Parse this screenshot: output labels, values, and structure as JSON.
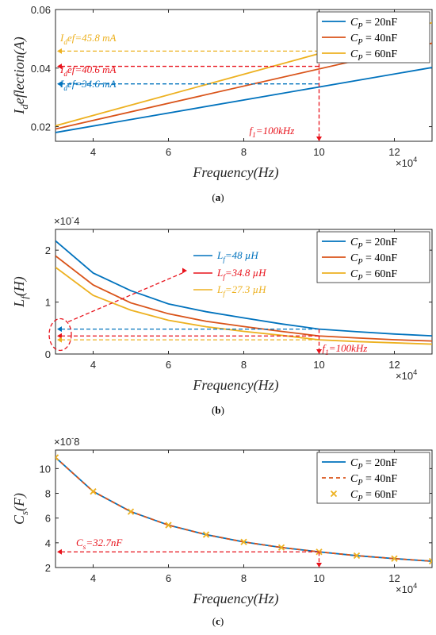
{
  "colors": {
    "blue": "#0072BD",
    "orange": "#D95319",
    "yellow": "#EDB120",
    "red": "#E8131C",
    "axis": "#262626"
  },
  "chart_data": [
    {
      "id": "a",
      "type": "line",
      "subcaption": "(a)",
      "xlabel": "Frequency(Hz)",
      "ylabel": "I_deflection(A)",
      "xlim": [
        30000,
        130000
      ],
      "ylim": [
        0.015,
        0.06
      ],
      "x_ticks": [
        "4",
        "6",
        "8",
        "10",
        "12"
      ],
      "y_ticks": [
        "0.02",
        "0.04",
        "0.06"
      ],
      "x_exponent": "×10^4",
      "legend": [
        "C_P = 20nF",
        "C_P = 40nF",
        "C_P = 60nF"
      ],
      "series": [
        {
          "name": "C_P = 20nF",
          "x": [
            30000,
            130000
          ],
          "y": [
            0.018,
            0.0402
          ]
        },
        {
          "name": "C_P = 40nF",
          "x": [
            30000,
            130000
          ],
          "y": [
            0.0192,
            0.0485
          ]
        },
        {
          "name": "C_P = 60nF",
          "x": [
            30000,
            130000
          ],
          "y": [
            0.0203,
            0.0555
          ]
        }
      ],
      "annotations": [
        {
          "label": "I_def=45.8 mA",
          "y": 0.0458,
          "color": "yellow"
        },
        {
          "label": "I_def=40.6 mA",
          "y": 0.0406,
          "color": "red"
        },
        {
          "label": "I_def=34.6 mA",
          "y": 0.0346,
          "color": "blue"
        },
        {
          "label": "f_1=100kHz",
          "x": 100000,
          "color": "red"
        }
      ]
    },
    {
      "id": "b",
      "type": "line",
      "subcaption": "(b)",
      "xlabel": "Frequency(Hz)",
      "ylabel": "L_f(H)",
      "xlim": [
        30000,
        130000
      ],
      "ylim": [
        0,
        0.00024
      ],
      "x_ticks": [
        "4",
        "6",
        "8",
        "10",
        "12"
      ],
      "y_ticks": [
        "0",
        "1",
        "2"
      ],
      "y_exponent": "×10^-4",
      "x_exponent": "×10^4",
      "legend": [
        "C_P = 20nF",
        "C_P = 40nF",
        "C_P = 60nF"
      ],
      "series": [
        {
          "name": "C_P = 20nF",
          "x": [
            30000,
            40000,
            50000,
            60000,
            70000,
            80000,
            90000,
            100000,
            110000,
            120000,
            130000
          ],
          "y": [
            0.000218,
            0.000156,
            0.000122,
            9.65e-05,
            8.15e-05,
            6.95e-05,
            5.8e-05,
            4.8e-05,
            4.3e-05,
            3.85e-05,
            3.5e-05
          ]
        },
        {
          "name": "C_P = 40nF",
          "x": [
            30000,
            40000,
            50000,
            60000,
            70000,
            80000,
            90000,
            100000,
            110000,
            120000,
            130000
          ],
          "y": [
            0.000189,
            0.000133,
            9.85e-05,
            7.75e-05,
            6.3e-05,
            5.3e-05,
            4.35e-05,
            3.48e-05,
            3.1e-05,
            2.75e-05,
            2.5e-05
          ]
        },
        {
          "name": "C_P = 60nF",
          "x": [
            30000,
            40000,
            50000,
            60000,
            70000,
            80000,
            90000,
            100000,
            110000,
            120000,
            130000
          ],
          "y": [
            0.000167,
            0.000113,
            8.45e-05,
            6.5e-05,
            5.25e-05,
            4.35e-05,
            3.6e-05,
            2.73e-05,
            2.4e-05,
            2.15e-05,
            1.9e-05
          ]
        }
      ],
      "annotations": [
        {
          "label": "L_f=48 µH",
          "y": 4.8e-05,
          "color": "blue"
        },
        {
          "label": "L_f=34.8 µH",
          "y": 3.48e-05,
          "color": "red"
        },
        {
          "label": "L_f=27.3 µH",
          "y": 2.73e-05,
          "color": "yellow"
        },
        {
          "label": "f_1=100kHz",
          "x": 100000,
          "color": "red"
        }
      ]
    },
    {
      "id": "c",
      "type": "line",
      "subcaption": "(c)",
      "xlabel": "Frequency(Hz)",
      "ylabel": "C_s(F)",
      "xlim": [
        30000,
        130000
      ],
      "ylim": [
        2e-08,
        1.15e-07
      ],
      "x_ticks": [
        "4",
        "6",
        "8",
        "10",
        "12"
      ],
      "y_ticks": [
        "2",
        "4",
        "6",
        "8",
        "10"
      ],
      "y_exponent": "×10^-8",
      "x_exponent": "×10^4",
      "legend": [
        "C_P = 20nF",
        "C_P = 40nF",
        "C_P = 60nF"
      ],
      "series": [
        {
          "name": "C_P = 20nF",
          "style": "solid",
          "x": [
            30000,
            40000,
            50000,
            60000,
            70000,
            80000,
            90000,
            100000,
            110000,
            120000,
            130000
          ],
          "y": [
            1.09e-07,
            8.15e-08,
            6.52e-08,
            5.43e-08,
            4.66e-08,
            4.07e-08,
            3.62e-08,
            3.27e-08,
            2.96e-08,
            2.72e-08,
            2.51e-08
          ]
        },
        {
          "name": "C_P = 40nF",
          "style": "dashed",
          "x": [
            30000,
            40000,
            50000,
            60000,
            70000,
            80000,
            90000,
            100000,
            110000,
            120000,
            130000
          ],
          "y": [
            1.09e-07,
            8.15e-08,
            6.52e-08,
            5.43e-08,
            4.66e-08,
            4.07e-08,
            3.62e-08,
            3.27e-08,
            2.96e-08,
            2.72e-08,
            2.51e-08
          ]
        },
        {
          "name": "C_P = 60nF",
          "style": "markers",
          "x": [
            30000,
            40000,
            50000,
            60000,
            70000,
            80000,
            90000,
            100000,
            110000,
            120000,
            130000
          ],
          "y": [
            1.09e-07,
            8.15e-08,
            6.52e-08,
            5.43e-08,
            4.66e-08,
            4.07e-08,
            3.62e-08,
            3.27e-08,
            2.96e-08,
            2.72e-08,
            2.51e-08
          ]
        }
      ],
      "annotations": [
        {
          "label": "C_s=32.7nF",
          "y": 3.27e-08,
          "color": "red"
        }
      ]
    }
  ]
}
